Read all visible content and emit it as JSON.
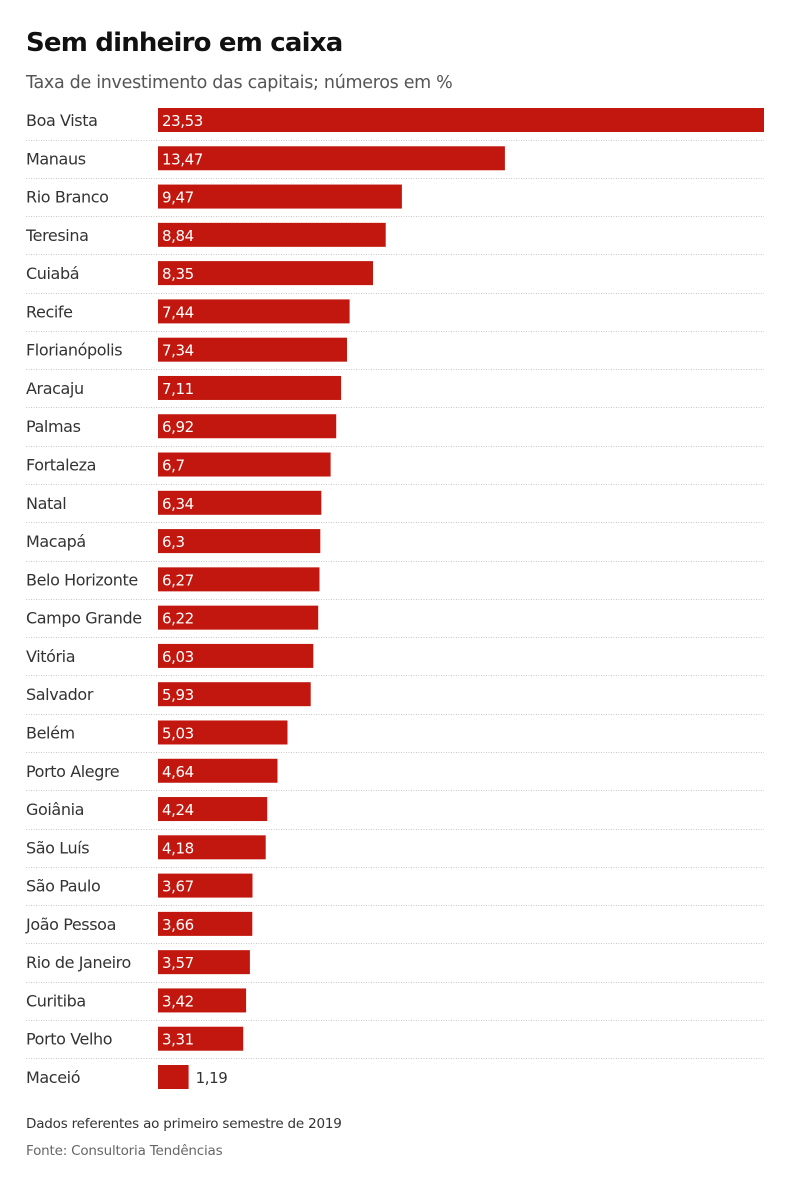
{
  "chart_data": {
    "type": "bar",
    "orientation": "horizontal",
    "title": "Sem dinheiro em caixa",
    "subtitle": "Taxa de investimento das capitais; números em %",
    "xlabel": "",
    "ylabel": "",
    "xlim": [
      0,
      23.53
    ],
    "grid": false,
    "bar_color": "#c1170e",
    "categories": [
      "Boa Vista",
      "Manaus",
      "Rio Branco",
      "Teresina",
      "Cuiabá",
      "Recife",
      "Florianópolis",
      "Aracaju",
      "Palmas",
      "Fortaleza",
      "Natal",
      "Macapá",
      "Belo Horizonte",
      "Campo Grande",
      "Vitória",
      "Salvador",
      "Belém",
      "Porto Alegre",
      "Goiânia",
      "São Luís",
      "São Paulo",
      "João Pessoa",
      "Rio de Janeiro",
      "Curitiba",
      "Porto Velho",
      "Maceió"
    ],
    "values": [
      23.53,
      13.47,
      9.47,
      8.84,
      8.35,
      7.44,
      7.34,
      7.11,
      6.92,
      6.7,
      6.34,
      6.3,
      6.27,
      6.22,
      6.03,
      5.93,
      5.03,
      4.64,
      4.24,
      4.18,
      3.67,
      3.66,
      3.57,
      3.42,
      3.31,
      1.19
    ],
    "value_labels": [
      "23,53",
      "13,47",
      "9,47",
      "8,84",
      "8,35",
      "7,44",
      "7,34",
      "7,11",
      "6,92",
      "6,7",
      "6,34",
      "6,3",
      "6,27",
      "6,22",
      "6,03",
      "5,93",
      "5,03",
      "4,64",
      "4,24",
      "4,18",
      "3,67",
      "3,66",
      "3,57",
      "3,42",
      "3,31",
      "1,19"
    ]
  },
  "footer": {
    "note": "Dados referentes ao primeiro semestre de 2019",
    "source": "Fonte: Consultoria Tendências"
  }
}
